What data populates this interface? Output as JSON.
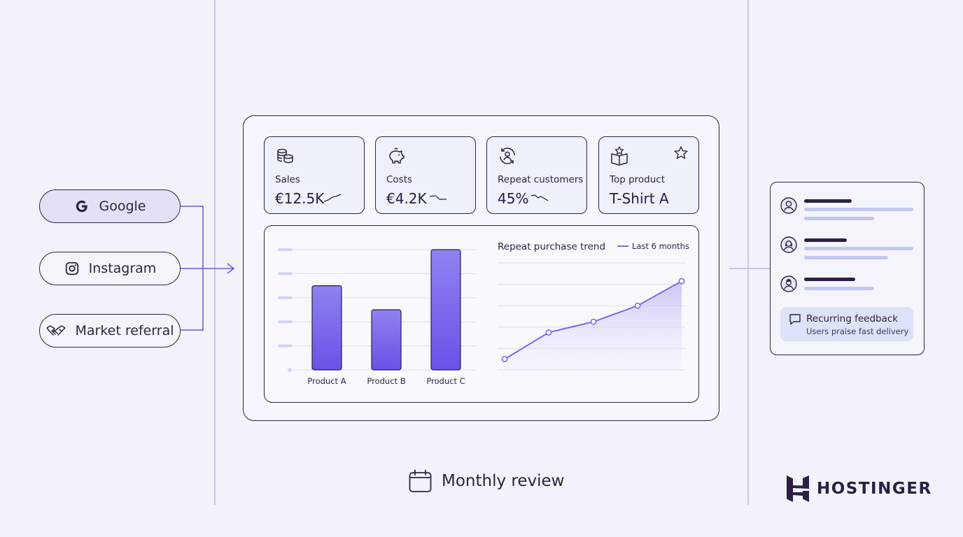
{
  "sources": [
    {
      "label": "Google",
      "icon": "google-icon"
    },
    {
      "label": "Instagram",
      "icon": "instagram-icon"
    },
    {
      "label": "Market referral",
      "icon": "handshake-icon"
    }
  ],
  "kpis": [
    {
      "label": "Sales",
      "value": "€12.5K",
      "icon": "coins-icon",
      "trend": "up"
    },
    {
      "label": "Costs",
      "value": "€4.2K",
      "icon": "piggy-bank-icon",
      "trend": "down"
    },
    {
      "label": "Repeat customers",
      "value": "45%",
      "icon": "repeat-customer-icon",
      "trend": "down"
    },
    {
      "label": "Top product",
      "value": "T-Shirt A",
      "icon": "product-box-icon",
      "badge": "star-icon"
    }
  ],
  "chart_data": [
    {
      "type": "bar",
      "categories": [
        "Product A",
        "Product B",
        "Product C"
      ],
      "values": [
        70,
        50,
        100
      ],
      "ylim": [
        0,
        100
      ],
      "grid": true,
      "color": "#7a68ea"
    },
    {
      "type": "area",
      "title": "Repeat purchase trend",
      "series": [
        {
          "name": "Last 6 months",
          "values": [
            10,
            35,
            45,
            60,
            83
          ]
        }
      ],
      "ylim": [
        0,
        100
      ],
      "legend": "top-right",
      "grid": true,
      "color": "#7a68ea"
    }
  ],
  "feedback": {
    "title": "Recurring feedback",
    "subtitle": "Users praise fast delivery"
  },
  "footer": {
    "review_label": "Monthly review",
    "brand": "HOSTINGER"
  },
  "colors": {
    "accent": "#7a68ea",
    "ink": "#2c2843",
    "background": "#f1f2fa",
    "highlight": "#dde2f9"
  }
}
